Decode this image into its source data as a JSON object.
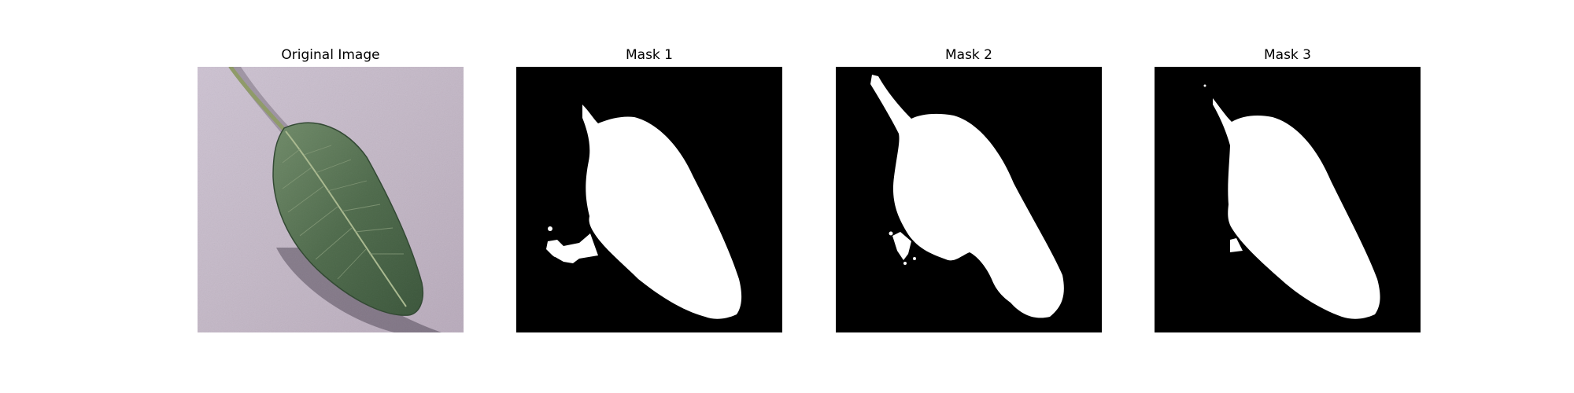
{
  "figure": {
    "panels": [
      {
        "title": "Original Image"
      },
      {
        "title": "Mask 1"
      },
      {
        "title": "Mask 2"
      },
      {
        "title": "Mask 3"
      }
    ]
  },
  "colors": {
    "background": "#c9bccb",
    "leaf_dark": "#3f5a3f",
    "leaf_light": "#6f8a68",
    "mask_fg": "#ffffff",
    "mask_bg": "#000000"
  }
}
